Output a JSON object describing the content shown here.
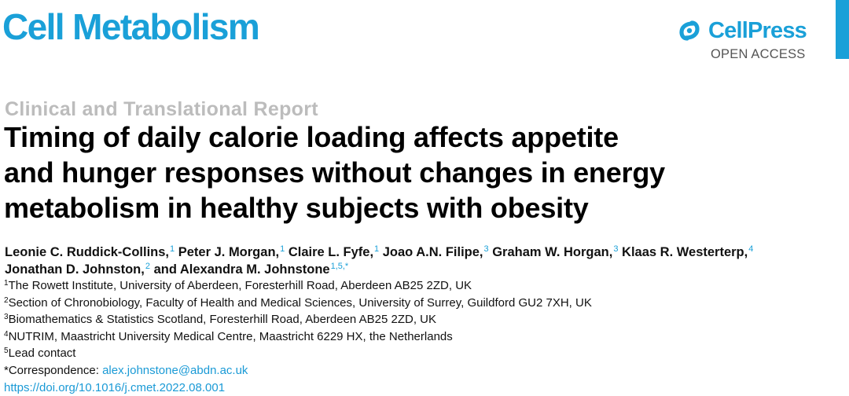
{
  "header": {
    "journal": "Cell Metabolism",
    "publisher": "CellPress",
    "access": "OPEN ACCESS",
    "colors": {
      "brand": "#1aa0d8",
      "muted": "#bcbcbc"
    },
    "logo_icon": "cellpress-logo-icon"
  },
  "article": {
    "type": "Clinical and Translational Report",
    "title_lines": [
      "Timing of daily calorie loading affects appetite",
      "and hunger responses without changes in energy",
      "metabolism in healthy subjects with obesity"
    ]
  },
  "authors": [
    {
      "name": "Leonie C. Ruddick-Collins,",
      "aff": "1"
    },
    {
      "name": "Peter J. Morgan,",
      "aff": "1"
    },
    {
      "name": "Claire L. Fyfe,",
      "aff": "1"
    },
    {
      "name": "Joao A.N. Filipe,",
      "aff": "3"
    },
    {
      "name": "Graham W. Horgan,",
      "aff": "3"
    },
    {
      "name": "Klaas R. Westerterp,",
      "aff": "4"
    },
    {
      "name": "Jonathan D. Johnston,",
      "aff": "2"
    },
    {
      "name": "and Alexandra M. Johnstone",
      "aff": "1,5,*"
    }
  ],
  "affiliations": [
    {
      "num": "1",
      "text": "The Rowett Institute, University of Aberdeen, Foresterhill Road, Aberdeen AB25 2ZD, UK"
    },
    {
      "num": "2",
      "text": "Section of Chronobiology, Faculty of Health and Medical Sciences, University of Surrey, Guildford GU2 7XH, UK"
    },
    {
      "num": "3",
      "text": "Biomathematics & Statistics Scotland, Foresterhill Road, Aberdeen AB25 2ZD, UK"
    },
    {
      "num": "4",
      "text": "NUTRIM, Maastricht University Medical Centre, Maastricht 6229 HX, the Netherlands"
    },
    {
      "num": "5",
      "text": "Lead contact"
    }
  ],
  "correspondence": {
    "label": "*Correspondence: ",
    "email": "alex.johnstone@abdn.ac.uk"
  },
  "doi": "https://doi.org/10.1016/j.cmet.2022.08.001"
}
